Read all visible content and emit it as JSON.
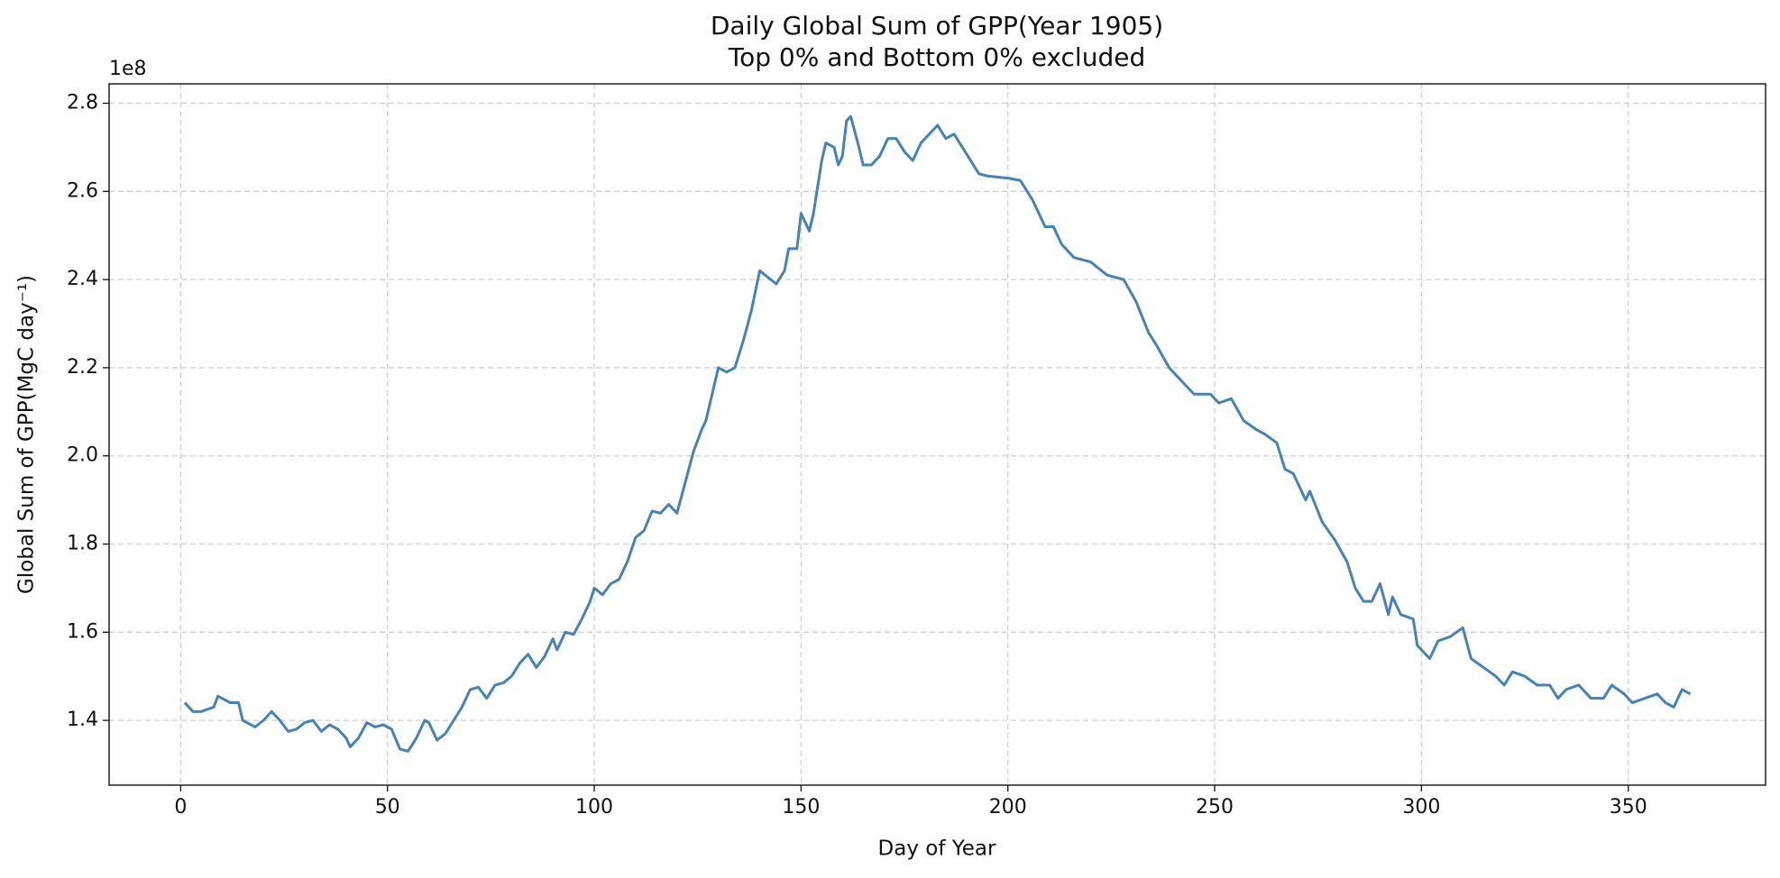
{
  "chart_data": {
    "type": "line",
    "title": "Daily Global Sum of GPP(Year 1905)",
    "subtitle": "Top 0% and Bottom 0% excluded",
    "x_label": "Day of Year",
    "y_label": "Global Sum of GPP(MgC day⁻¹)",
    "y_offset_label": "1e8",
    "color": "#4682b4",
    "grid": true,
    "xlim": [
      -17.3,
      383.2
    ],
    "ylim": [
      1.253,
      2.844
    ],
    "xticks": [
      0,
      50,
      100,
      150,
      200,
      250,
      300,
      350
    ],
    "yticks": [
      1.4,
      1.6,
      1.8,
      {
        "value": 2,
        "label": "2.0"
      },
      2.2,
      2.4,
      2.6,
      2.8
    ],
    "x": [
      1,
      3,
      5,
      8,
      9,
      12,
      14,
      15,
      18,
      20,
      22,
      24,
      26,
      28,
      30,
      32,
      34,
      36,
      38,
      40,
      41,
      43,
      45,
      47,
      49,
      51,
      53,
      55,
      57,
      59,
      60,
      62,
      64,
      66,
      68,
      70,
      72,
      74,
      76,
      78,
      80,
      82,
      84,
      86,
      88,
      90,
      91,
      93,
      95,
      97,
      99,
      100,
      102,
      104,
      106,
      108,
      110,
      112,
      114,
      116,
      118,
      120,
      122,
      124,
      126,
      127,
      129,
      130,
      132,
      134,
      136,
      138,
      140,
      142,
      144,
      146,
      147,
      149,
      150,
      152,
      153,
      155,
      156,
      158,
      159,
      160,
      161,
      162,
      164,
      165,
      167,
      169,
      171,
      173,
      175,
      177,
      179,
      181,
      183,
      185,
      187,
      189,
      191,
      193,
      195,
      200,
      203,
      206,
      209,
      211,
      213,
      216,
      220,
      224,
      228,
      231,
      234,
      236,
      239,
      242,
      245,
      249,
      251,
      254,
      257,
      260,
      262,
      265,
      267,
      269,
      272,
      273,
      276,
      279,
      282,
      284,
      286,
      288,
      290,
      292,
      293,
      295,
      298,
      299,
      302,
      304,
      307,
      310,
      312,
      315,
      318,
      320,
      322,
      325,
      328,
      331,
      333,
      335,
      338,
      341,
      344,
      346,
      349,
      351,
      354,
      357,
      359,
      361,
      363,
      365
    ],
    "values": [
      1.44,
      1.42,
      1.42,
      1.43,
      1.455,
      1.44,
      1.44,
      1.4,
      1.385,
      1.4,
      1.42,
      1.4,
      1.375,
      1.38,
      1.395,
      1.4,
      1.375,
      1.39,
      1.38,
      1.36,
      1.34,
      1.36,
      1.395,
      1.385,
      1.39,
      1.38,
      1.335,
      1.33,
      1.36,
      1.4,
      1.395,
      1.355,
      1.37,
      1.4,
      1.43,
      1.47,
      1.475,
      1.45,
      1.48,
      1.485,
      1.5,
      1.53,
      1.55,
      1.52,
      1.545,
      1.585,
      1.56,
      1.6,
      1.595,
      1.63,
      1.67,
      1.7,
      1.685,
      1.71,
      1.72,
      1.76,
      1.815,
      1.83,
      1.875,
      1.87,
      1.89,
      1.87,
      1.94,
      2.01,
      2.06,
      2.08,
      2.16,
      2.2,
      2.19,
      2.2,
      2.26,
      2.33,
      2.42,
      2.405,
      2.39,
      2.42,
      2.47,
      2.47,
      2.55,
      2.51,
      2.55,
      2.67,
      2.71,
      2.7,
      2.66,
      2.68,
      2.76,
      2.77,
      2.7,
      2.66,
      2.66,
      2.68,
      2.72,
      2.72,
      2.69,
      2.67,
      2.71,
      2.73,
      2.75,
      2.72,
      2.73,
      2.7,
      2.67,
      2.64,
      2.635,
      2.63,
      2.625,
      2.58,
      2.52,
      2.52,
      2.48,
      2.45,
      2.44,
      2.41,
      2.4,
      2.35,
      2.28,
      2.25,
      2.2,
      2.17,
      2.14,
      2.14,
      2.12,
      2.13,
      2.08,
      2.06,
      2.05,
      2.03,
      1.97,
      1.96,
      1.9,
      1.92,
      1.85,
      1.81,
      1.76,
      1.7,
      1.67,
      1.67,
      1.71,
      1.64,
      1.68,
      1.64,
      1.63,
      1.57,
      1.54,
      1.58,
      1.59,
      1.61,
      1.54,
      1.52,
      1.5,
      1.48,
      1.51,
      1.5,
      1.48,
      1.48,
      1.45,
      1.47,
      1.48,
      1.45,
      1.45,
      1.48,
      1.46,
      1.44,
      1.45,
      1.46,
      1.44,
      1.43,
      1.47,
      1.46
    ]
  }
}
